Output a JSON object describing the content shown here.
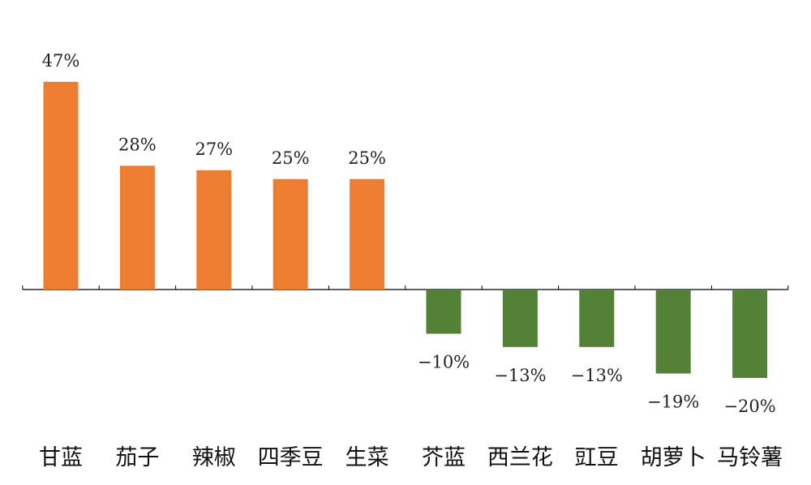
{
  "chart_data": {
    "type": "bar",
    "categories": [
      "甘蓝",
      "茄子",
      "辣椒",
      "四季豆",
      "生菜",
      "芥蓝",
      "西兰花",
      "豇豆",
      "胡萝卜",
      "马铃薯"
    ],
    "values": [
      47,
      28,
      27,
      25,
      25,
      -10,
      -13,
      -13,
      -19,
      -20
    ],
    "data_labels": [
      "47%",
      "28%",
      "27%",
      "25%",
      "25%",
      "−10%",
      "−13%",
      "−13%",
      "−19%",
      "−20%"
    ],
    "title": "",
    "xlabel": "",
    "ylabel": "",
    "ylim": [
      -25,
      50
    ],
    "grid": false,
    "legend": "none",
    "colors": {
      "positive": "#ED7D31",
      "negative": "#538135",
      "axis": "#000000"
    }
  }
}
